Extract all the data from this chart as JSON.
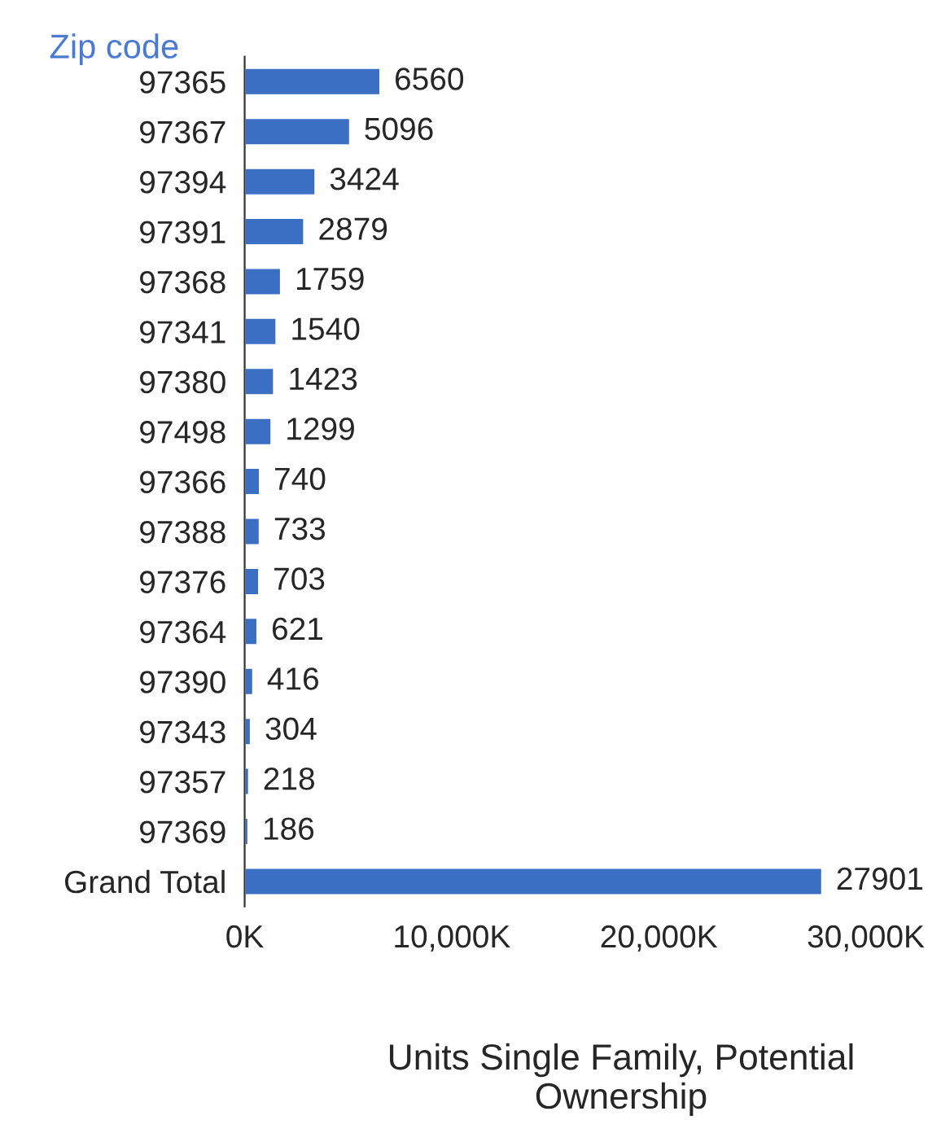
{
  "chart_data": {
    "type": "bar",
    "orientation": "horizontal",
    "ylabel": "Zip code",
    "xlabel": "Units Single Family, Potential Ownership",
    "categories": [
      "97365",
      "97367",
      "97394",
      "97391",
      "97368",
      "97341",
      "97380",
      "97498",
      "97366",
      "97388",
      "97376",
      "97364",
      "97390",
      "97343",
      "97357",
      "97369",
      "Grand Total"
    ],
    "values": [
      6560,
      5096,
      3424,
      2879,
      1759,
      1540,
      1423,
      1299,
      740,
      733,
      703,
      621,
      416,
      304,
      218,
      186,
      27901
    ],
    "color": "#3a6fc4",
    "data_labels": true,
    "xlim": [
      0,
      30000
    ],
    "xticks": [
      {
        "value": 0,
        "label": "0K"
      },
      {
        "value": 10000,
        "label": "10,000K"
      },
      {
        "value": 20000,
        "label": "20,000K"
      },
      {
        "value": 30000,
        "label": "30,000K"
      }
    ],
    "grid": false,
    "legend": false
  }
}
